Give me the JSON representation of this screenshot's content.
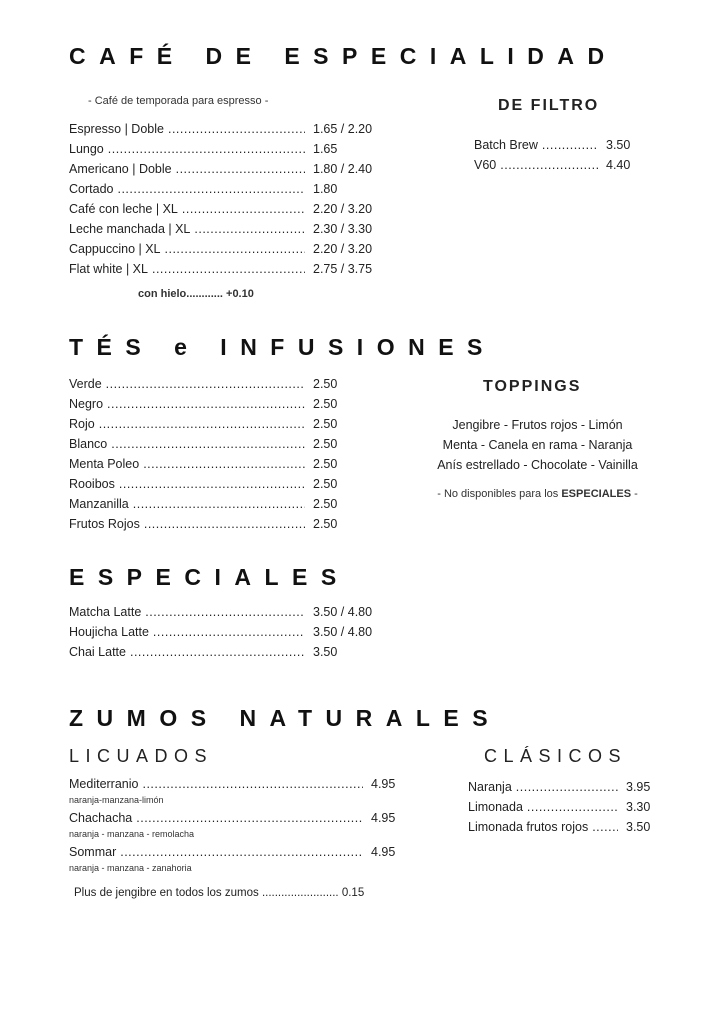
{
  "cafe": {
    "title": "CAFÉ DE ESPECIALIDAD",
    "note": "- Café de temporada para espresso -",
    "items": [
      {
        "name": "Espresso | Doble",
        "price": "1.65 / 2.20"
      },
      {
        "name": "Lungo",
        "price": "1.65"
      },
      {
        "name": "Americano | Doble",
        "price": "1.80 / 2.40"
      },
      {
        "name": "Cortado",
        "price": "1.80"
      },
      {
        "name": "Café con leche | XL",
        "price": "2.20 / 3.20"
      },
      {
        "name": "Leche manchada | XL",
        "price": "2.30 / 3.30"
      },
      {
        "name": "Cappuccino | XL",
        "price": "2.20 / 3.20"
      },
      {
        "name": "Flat white | XL",
        "price": "2.75 / 3.75"
      }
    ],
    "ice_label": "con hielo",
    "ice_price": "+0.10"
  },
  "filtro": {
    "title": "DE FILTRO",
    "items": [
      {
        "name": "Batch Brew",
        "price": "3.50"
      },
      {
        "name": "V60",
        "price": "4.40"
      }
    ]
  },
  "tes": {
    "title": "TÉS e INFUSIONES",
    "items": [
      {
        "name": "Verde",
        "price": "2.50"
      },
      {
        "name": "Negro",
        "price": "2.50"
      },
      {
        "name": "Rojo",
        "price": "2.50"
      },
      {
        "name": "Blanco",
        "price": "2.50"
      },
      {
        "name": "Menta Poleo",
        "price": "2.50"
      },
      {
        "name": "Rooibos",
        "price": "2.50"
      },
      {
        "name": "Manzanilla",
        "price": "2.50"
      },
      {
        "name": "Frutos Rojos",
        "price": "2.50"
      }
    ]
  },
  "toppings": {
    "title": "TOPPINGS",
    "lines": [
      "Jengibre - Frutos rojos - Limón",
      "Menta - Canela en rama - Naranja",
      "Anís estrellado - Chocolate - Vainilla"
    ],
    "note_prefix": "- No disponibles para los ",
    "note_bold": "ESPECIALES",
    "note_suffix": " -"
  },
  "especiales": {
    "title": "ESPECIALES",
    "items": [
      {
        "name": "Matcha Latte",
        "price": "3.50  / 4.80"
      },
      {
        "name": "Houjicha Latte",
        "price": "3.50 / 4.80"
      },
      {
        "name": "Chai Latte",
        "price": "3.50"
      }
    ]
  },
  "zumos": {
    "title": "ZUMOS NATURALES",
    "licuados_title": "LICUADOS",
    "licuados": [
      {
        "name": "Mediterranio",
        "price": "4.95",
        "desc": "naranja-manzana-limón"
      },
      {
        "name": "Chachacha",
        "price": "4.95",
        "desc": "naranja - manzana - remolacha"
      },
      {
        "name": "Sommar",
        "price": "4.95",
        "desc": "naranja - manzana - zanahoria"
      }
    ],
    "plus_label": "Plus de jengibre en todos los zumos",
    "plus_price": "0.15",
    "clasicos_title": "CLÁSICOS",
    "clasicos": [
      {
        "name": "Naranja",
        "price": "3.95"
      },
      {
        "name": "Limonada",
        "price": "3.30"
      },
      {
        "name": "Limonada frutos rojos",
        "price": "3.50"
      }
    ]
  }
}
